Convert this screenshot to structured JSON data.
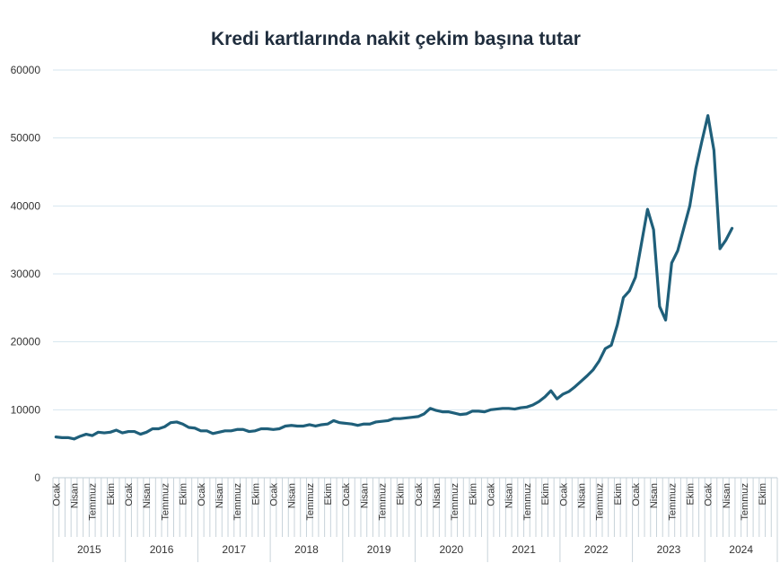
{
  "chart_data": {
    "type": "line",
    "title": "Kredi kartlarında nakit çekim başına tutar",
    "xlabel": "",
    "ylabel": "",
    "ylim": [
      0,
      60000
    ],
    "yticks": [
      0,
      10000,
      20000,
      30000,
      40000,
      50000,
      60000
    ],
    "grid": true,
    "legend": "none",
    "line_color": "#1f5f7a",
    "year_labels": [
      "2015",
      "2016",
      "2017",
      "2018",
      "2019",
      "2020",
      "2021",
      "2022",
      "2023",
      "2024"
    ],
    "month_labels": [
      "Ocak",
      "",
      "",
      "Nisan",
      "",
      "",
      "Temmuz",
      "",
      "",
      "Ekim",
      "",
      ""
    ],
    "series": [
      {
        "values": [
          6000,
          5900,
          5900,
          5700,
          6100,
          6400,
          6200,
          6700,
          6600,
          6700,
          7000,
          6600,
          6800,
          6800,
          6400,
          6700,
          7200,
          7200,
          7500,
          8100,
          8200,
          7900,
          7400,
          7300,
          6900,
          6900,
          6500,
          6700,
          6900,
          6900,
          7100,
          7100,
          6800,
          6900,
          7200,
          7200,
          7100,
          7200,
          7600,
          7700,
          7600,
          7600,
          7800,
          7600,
          7800,
          7900,
          8400,
          8100,
          8000,
          7900,
          7700,
          7900,
          7900,
          8200,
          8300,
          8400,
          8700,
          8700,
          8800,
          8900,
          9000,
          9400,
          10200,
          9900,
          9700,
          9700,
          9500,
          9300,
          9400,
          9800,
          9800,
          9700,
          10000,
          10100,
          10200,
          10200,
          10100,
          10300,
          10400,
          10700,
          11200,
          11900,
          12800,
          11600,
          12300,
          12700,
          13400,
          14200,
          15000,
          15900,
          17200,
          19000,
          19500,
          22500,
          26500,
          27500,
          29500,
          34500,
          39500,
          36500,
          25200,
          23200,
          31600,
          33400,
          36700,
          40000,
          45500,
          49500,
          53300,
          48200,
          33700,
          35000,
          36700
        ]
      }
    ]
  }
}
